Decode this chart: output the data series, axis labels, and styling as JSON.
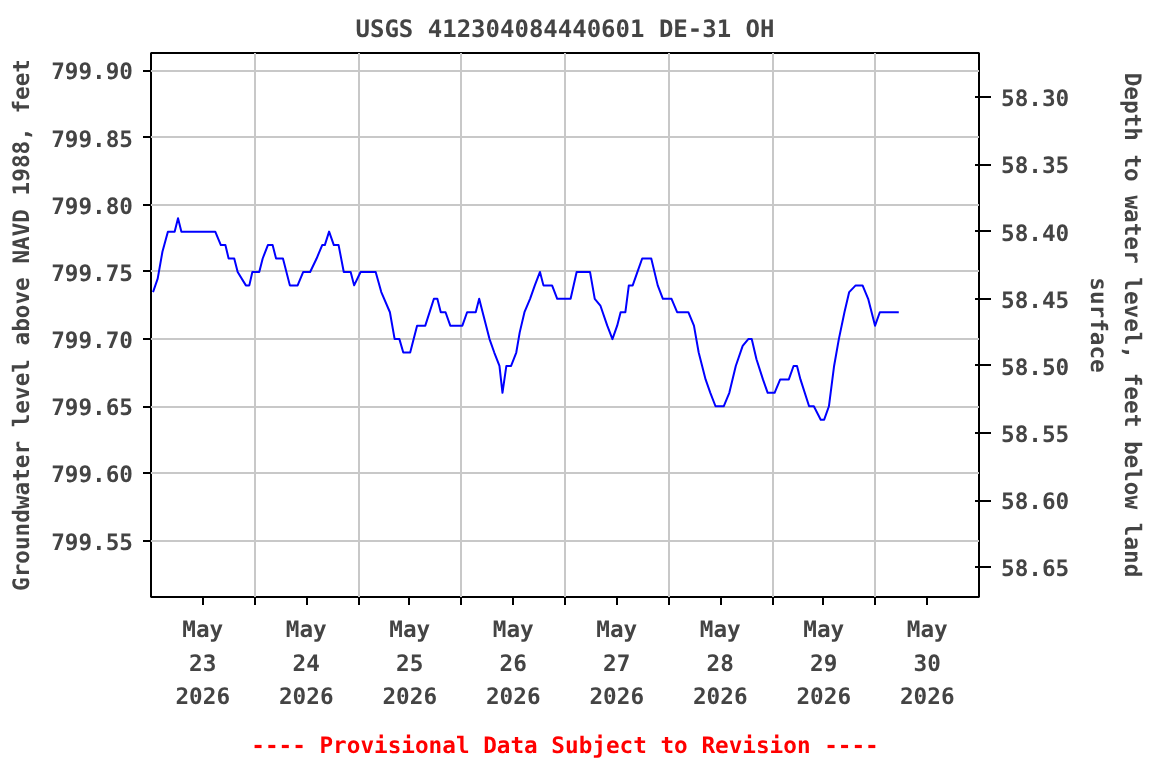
{
  "chart_data": {
    "type": "line",
    "title": "USGS 412304084440601 DE-31 OH",
    "ylabel": "Groundwater level above NAVD 1988, feet",
    "y2label": "Depth to water level, feet below land surface",
    "annotations": [
      "---- Provisional Data Subject to Revision ----"
    ],
    "xlim": [
      "2026-05-23",
      "2026-05-31"
    ],
    "xticks": [
      {
        "value": "2026-05-23T12:00",
        "label": "May 23 2026"
      },
      {
        "value": "2026-05-24",
        "label": null
      },
      {
        "value": "2026-05-24T12:00",
        "label": "May 24 2026"
      },
      {
        "value": "2026-05-25",
        "label": null
      },
      {
        "value": "2026-05-25T12:00",
        "label": "May 25 2026"
      },
      {
        "value": "2026-05-26",
        "label": null
      },
      {
        "value": "2026-05-26T12:00",
        "label": "May 26 2026"
      },
      {
        "value": "2026-05-27",
        "label": null
      },
      {
        "value": "2026-05-27T12:00",
        "label": "May 27 2026"
      },
      {
        "value": "2026-05-28",
        "label": null
      },
      {
        "value": "2026-05-28T12:00",
        "label": "May 28 2026"
      },
      {
        "value": "2026-05-29",
        "label": null
      },
      {
        "value": "2026-05-29T12:00",
        "label": "May 29 2026"
      },
      {
        "value": "2026-05-30",
        "label": null
      },
      {
        "value": "2026-05-30T12:00",
        "label": "May 30 2026"
      }
    ],
    "ylim": [
      799.508,
      799.913
    ],
    "yticks": [
      {
        "value": 799.55,
        "label": "799.55"
      },
      {
        "value": 799.6,
        "label": "799.60"
      },
      {
        "value": 799.65,
        "label": "799.65"
      },
      {
        "value": 799.7,
        "label": "799.70"
      },
      {
        "value": 799.75,
        "label": "799.75"
      },
      {
        "value": 799.8,
        "label": "799.80"
      },
      {
        "value": 799.85,
        "label": "799.85"
      },
      {
        "value": 799.9,
        "label": "799.90"
      }
    ],
    "y2lim": [
      58.672,
      58.267
    ],
    "y2ticks": [
      {
        "value": 58.3,
        "label": "58.30"
      },
      {
        "value": 58.35,
        "label": "58.35"
      },
      {
        "value": 58.4,
        "label": "58.40"
      },
      {
        "value": 58.45,
        "label": "58.45"
      },
      {
        "value": 58.5,
        "label": "58.50"
      },
      {
        "value": 58.55,
        "label": "58.55"
      },
      {
        "value": 58.6,
        "label": "58.60"
      },
      {
        "value": 58.65,
        "label": "58.65"
      }
    ],
    "grid": true,
    "line_style": "solid",
    "marker": "none",
    "series": [
      {
        "color": "#0000ff",
        "x": [
          "2026-05-23T00:28",
          "2026-05-23T01:33",
          "2026-05-23T02:39",
          "2026-05-23T03:55",
          "2026-05-23T05:29",
          "2026-05-23T06:16",
          "2026-05-23T07:03",
          "2026-05-23T14:54",
          "2026-05-23T16:12",
          "2026-05-23T17:15",
          "2026-05-23T18:00",
          "2026-05-23T19:18",
          "2026-05-23T20:06",
          "2026-05-23T22:00",
          "2026-05-23T22:48",
          "2026-05-23T23:30",
          "2026-05-24T01:06",
          "2026-05-24T01:54",
          "2026-05-24T03:06",
          "2026-05-24T04:12",
          "2026-05-24T05:00",
          "2026-05-24T06:36",
          "2026-05-24T08:12",
          "2026-05-24T10:00",
          "2026-05-24T11:18",
          "2026-05-24T12:54",
          "2026-05-24T14:24",
          "2026-05-24T15:42",
          "2026-05-24T16:18",
          "2026-05-24T17:18",
          "2026-05-24T18:24",
          "2026-05-24T19:30",
          "2026-05-24T20:42",
          "2026-05-24T22:18",
          "2026-05-24T23:06",
          "2026-05-25T00:36",
          "2026-05-25T04:06",
          "2026-05-25T05:24",
          "2026-05-25T07:24",
          "2026-05-25T08:30",
          "2026-05-25T09:36",
          "2026-05-25T10:30",
          "2026-05-25T12:06",
          "2026-05-25T13:42",
          "2026-05-25T15:36",
          "2026-05-25T17:36",
          "2026-05-25T18:24",
          "2026-05-25T19:12",
          "2026-05-25T20:18",
          "2026-05-25T21:24",
          "2026-05-26T00:12",
          "2026-05-26T01:18",
          "2026-05-26T03:18",
          "2026-05-26T04:06",
          "2026-05-26T04:54",
          "2026-05-26T06:30",
          "2026-05-26T07:36",
          "2026-05-26T08:48",
          "2026-05-26T09:30",
          "2026-05-26T10:24",
          "2026-05-26T11:30",
          "2026-05-26T12:42",
          "2026-05-26T13:30",
          "2026-05-26T14:36",
          "2026-05-26T15:54",
          "2026-05-26T17:00",
          "2026-05-26T18:12",
          "2026-05-26T19:00",
          "2026-05-26T21:00",
          "2026-05-26T22:12",
          "2026-05-27T01:18",
          "2026-05-27T02:42",
          "2026-05-27T05:48",
          "2026-05-27T06:54",
          "2026-05-27T08:12",
          "2026-05-27T09:48",
          "2026-05-27T11:00",
          "2026-05-27T12:06",
          "2026-05-27T12:54",
          "2026-05-27T14:00",
          "2026-05-27T14:48",
          "2026-05-27T15:42",
          "2026-05-27T16:48",
          "2026-05-27T17:54",
          "2026-05-27T20:00",
          "2026-05-27T21:30",
          "2026-05-27T22:42",
          "2026-05-28T00:42",
          "2026-05-28T02:00",
          "2026-05-28T04:36",
          "2026-05-28T05:54",
          "2026-05-28T07:00",
          "2026-05-28T08:36",
          "2026-05-28T09:42",
          "2026-05-28T10:54",
          "2026-05-28T12:48",
          "2026-05-28T14:06",
          "2026-05-28T15:36",
          "2026-05-28T17:12",
          "2026-05-28T18:30",
          "2026-05-28T19:18",
          "2026-05-28T20:24",
          "2026-05-28T21:54",
          "2026-05-28T23:00",
          "2026-05-29T00:36",
          "2026-05-29T01:54",
          "2026-05-29T03:54",
          "2026-05-29T05:00",
          "2026-05-29T05:48",
          "2026-05-29T06:36",
          "2026-05-29T08:36",
          "2026-05-29T09:42",
          "2026-05-29T11:18",
          "2026-05-29T12:06",
          "2026-05-29T13:12",
          "2026-05-29T14:24",
          "2026-05-29T15:30",
          "2026-05-29T16:48",
          "2026-05-29T17:54",
          "2026-05-29T19:24",
          "2026-05-29T21:00",
          "2026-05-29T22:18",
          "2026-05-29T23:54",
          "2026-05-30T01:00",
          "2026-05-30T05:24"
        ],
        "values": [
          799.735,
          799.745,
          799.765,
          799.78,
          799.78,
          799.79,
          799.78,
          799.78,
          799.77,
          799.77,
          799.76,
          799.76,
          799.75,
          799.74,
          799.74,
          799.75,
          799.75,
          799.76,
          799.77,
          799.77,
          799.76,
          799.76,
          799.74,
          799.74,
          799.75,
          799.75,
          799.76,
          799.77,
          799.77,
          799.78,
          799.77,
          799.77,
          799.75,
          799.75,
          799.74,
          799.75,
          799.75,
          799.735,
          799.72,
          799.7,
          799.7,
          799.69,
          799.69,
          799.71,
          799.71,
          799.73,
          799.73,
          799.72,
          799.72,
          799.71,
          799.71,
          799.72,
          799.72,
          799.73,
          799.72,
          799.7,
          799.69,
          799.68,
          799.66,
          799.68,
          799.68,
          799.69,
          799.705,
          799.72,
          799.73,
          799.74,
          799.75,
          799.74,
          799.74,
          799.73,
          799.73,
          799.75,
          799.75,
          799.73,
          799.725,
          799.71,
          799.7,
          799.71,
          799.72,
          799.72,
          799.74,
          799.74,
          799.75,
          799.76,
          799.76,
          799.74,
          799.73,
          799.73,
          799.72,
          799.72,
          799.71,
          799.69,
          799.67,
          799.66,
          799.65,
          799.65,
          799.66,
          799.68,
          799.695,
          799.7,
          799.7,
          799.685,
          799.67,
          799.66,
          799.66,
          799.67,
          799.67,
          799.68,
          799.68,
          799.67,
          799.65,
          799.65,
          799.64,
          799.64,
          799.65,
          799.68,
          799.7,
          799.72,
          799.735,
          799.74,
          799.74,
          799.73,
          799.71,
          799.72,
          799.72
        ]
      }
    ]
  }
}
